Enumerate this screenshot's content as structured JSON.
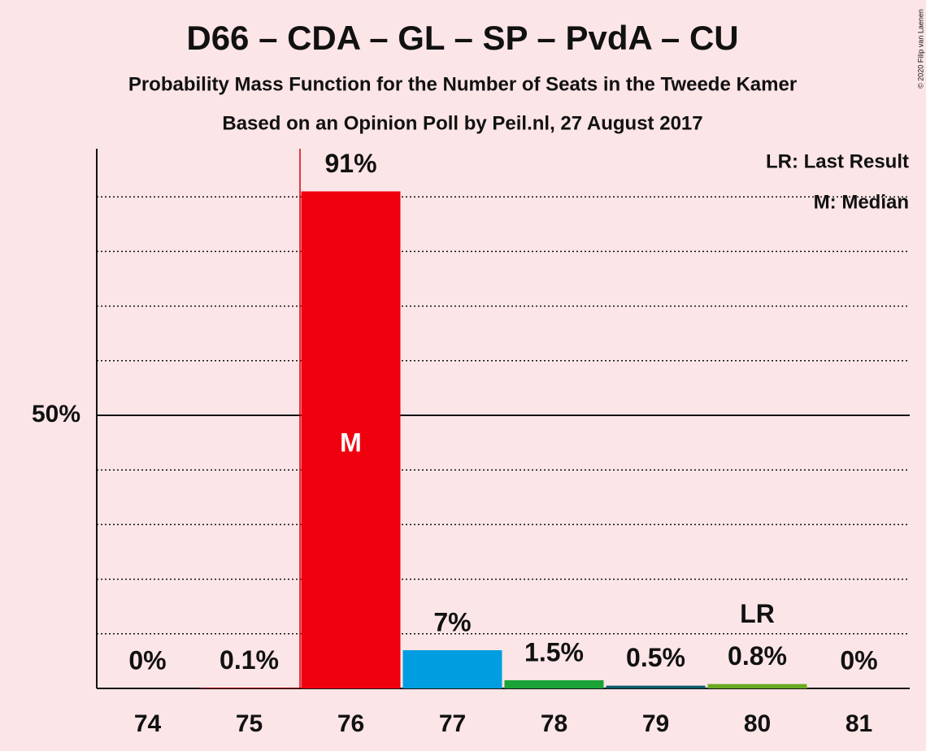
{
  "chart_data": {
    "type": "bar",
    "title": "D66 – CDA – GL – SP – PvdA – CU",
    "subtitle": "Probability Mass Function for the Number of Seats in the Tweede Kamer",
    "source": "Based on an Opinion Poll by Peil.nl, 27 August 2017",
    "copyright": "© 2020 Filip van Laenen",
    "legend": [
      "LR: Last Result",
      "M: Median"
    ],
    "categories": [
      "74",
      "75",
      "76",
      "77",
      "78",
      "79",
      "80",
      "81"
    ],
    "values": [
      0,
      0.1,
      91,
      7,
      1.5,
      0.5,
      0.8,
      0
    ],
    "value_labels": [
      "0%",
      "0.1%",
      "91%",
      "7%",
      "1.5%",
      "0.5%",
      "0.8%",
      "0%"
    ],
    "colors": [
      "#f0000f",
      "#f0000f",
      "#f0000f",
      "#009ee0",
      "#1aa337",
      "#0b5b6b",
      "#6aaa22",
      "#6aaa22"
    ],
    "ylim": [
      0,
      100
    ],
    "yticks": [
      {
        "value": 50,
        "label": "50%"
      }
    ],
    "minor_yticks": [
      10,
      20,
      30,
      40,
      60,
      70,
      80,
      90
    ],
    "median": "76",
    "median_label": "M",
    "last_result": "80",
    "last_result_label": "LR",
    "majority_line": "76",
    "majority_color": "#d0000d"
  }
}
